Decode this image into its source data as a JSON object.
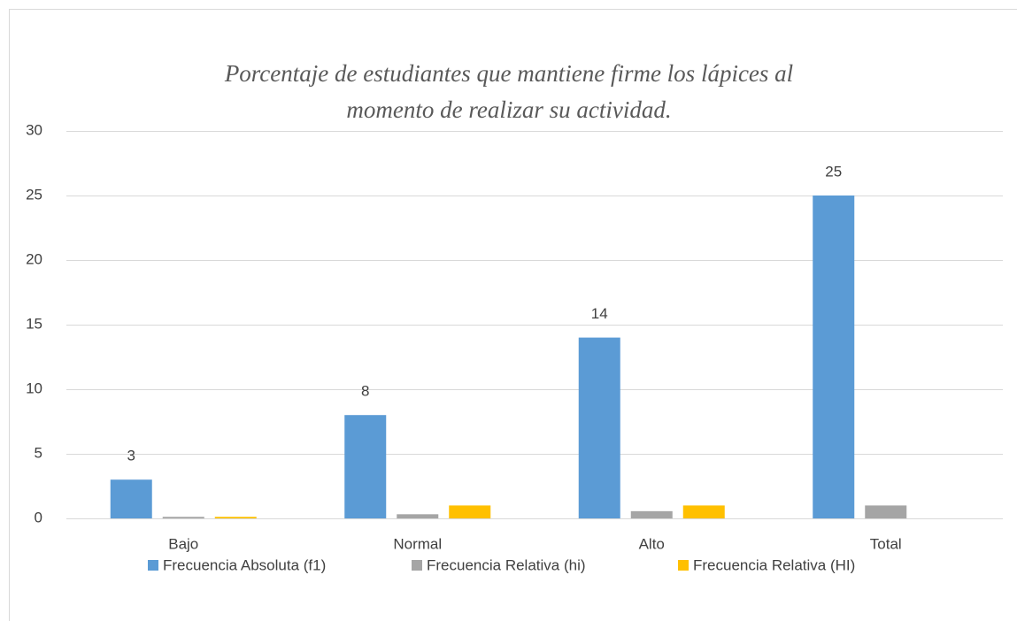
{
  "chart_data": {
    "type": "bar",
    "title": "Porcentaje de estudiantes que mantiene firme los lápices al momento de realizar su actividad.",
    "categories": [
      "Bajo",
      "Normal",
      "Alto",
      "Total"
    ],
    "series": [
      {
        "name": "Frecuencia Absoluta (f1)",
        "color": "#5b9bd5",
        "values": [
          3,
          8,
          14,
          25
        ]
      },
      {
        "name": "Frecuencia Relativa (hi)",
        "color": "#a5a5a5",
        "values": [
          0.12,
          0.32,
          0.56,
          1
        ]
      },
      {
        "name": "Frecuencia Relativa (HI)",
        "color": "#ffc000",
        "values": [
          0.12,
          1,
          1,
          null
        ]
      }
    ],
    "ylim": [
      0,
      30
    ],
    "yticks": [
      0,
      5,
      10,
      15,
      20,
      25,
      30
    ],
    "grid": true,
    "legend": "bottom"
  }
}
